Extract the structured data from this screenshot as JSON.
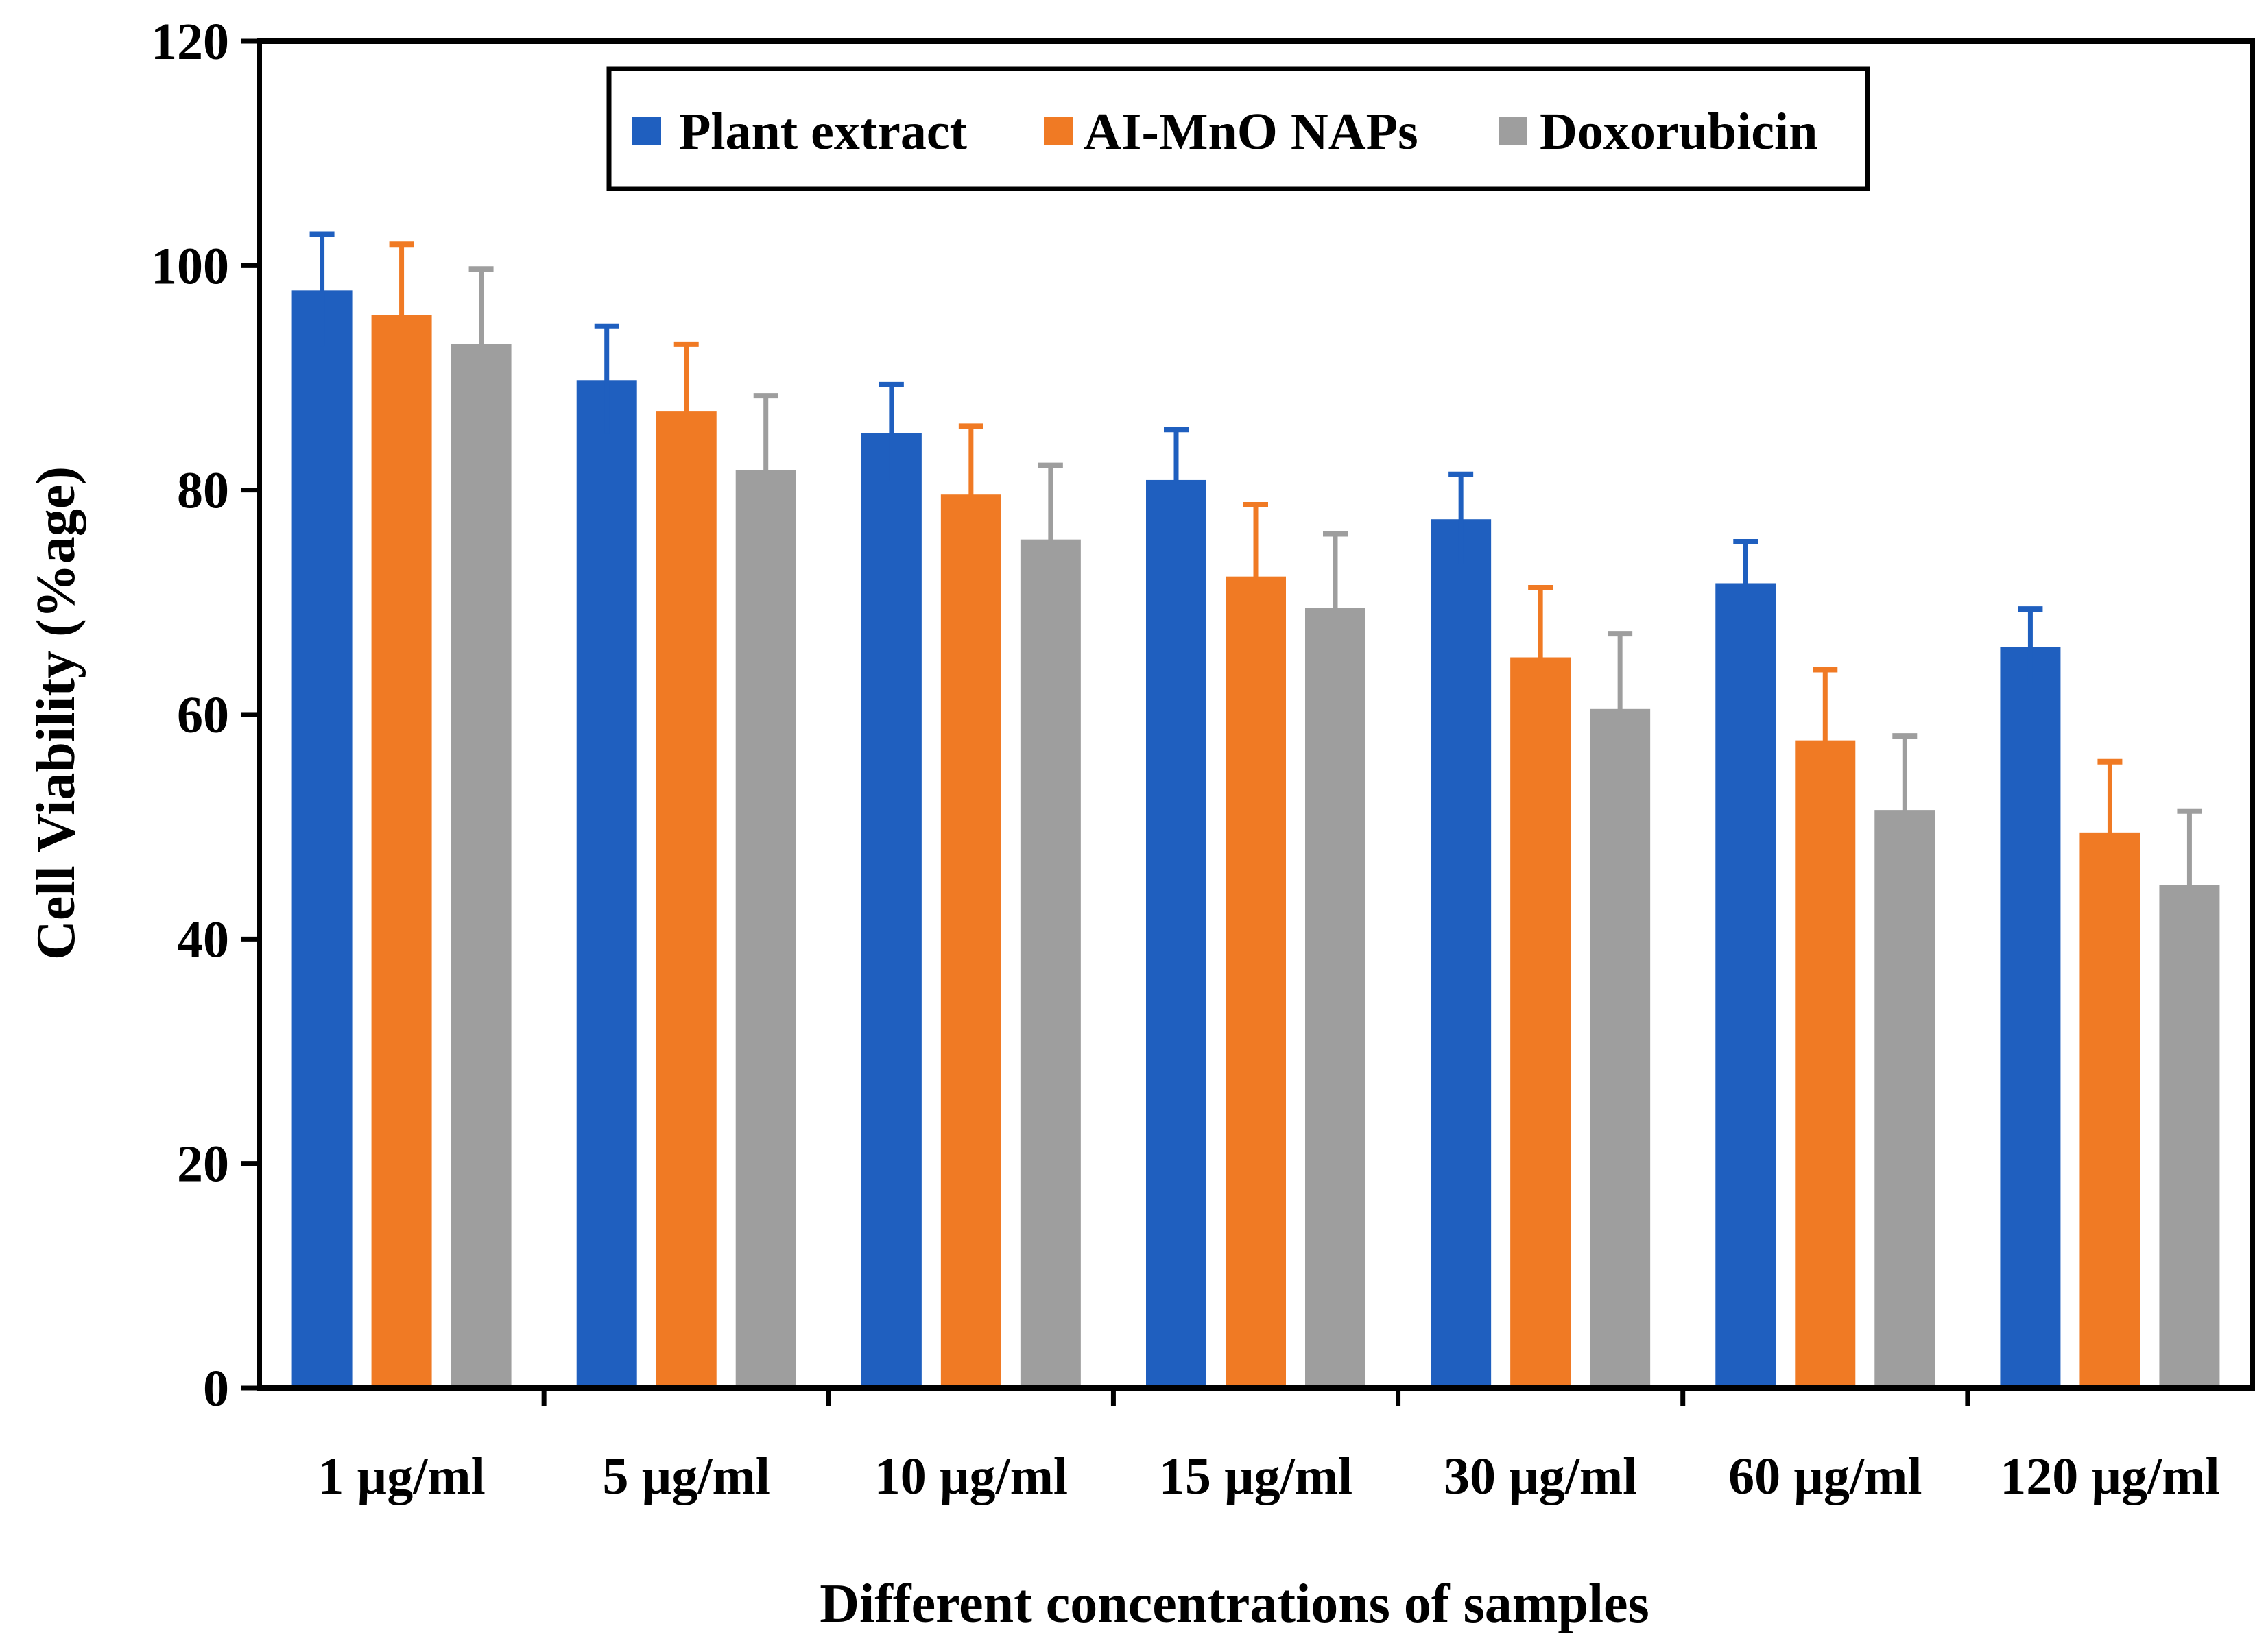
{
  "chart_data": {
    "type": "bar",
    "title": "",
    "xlabel": "Different concentrations of samples",
    "ylabel": "Cell Viability (%age)",
    "ylim": [
      0,
      120
    ],
    "yticks": [
      0,
      20,
      40,
      60,
      80,
      100,
      120
    ],
    "categories": [
      "1 µg/ml",
      "5 µg/ml",
      "10 µg/ml",
      "15 µg/ml",
      "30 µg/ml",
      "60 µg/ml",
      "120 µg/ml"
    ],
    "series": [
      {
        "name": "Plant extract",
        "color": "#1f5fbf",
        "errColor": "#1f5fbf",
        "values": [
          97.8,
          89.8,
          85.1,
          80.9,
          77.4,
          71.7,
          66.0
        ],
        "errors": [
          5.0,
          4.8,
          4.3,
          4.5,
          4.0,
          3.7,
          3.4
        ]
      },
      {
        "name": "AI-MnO NAPs",
        "color": "#f07a24",
        "errColor": "#f07a24",
        "values": [
          95.6,
          87.0,
          79.6,
          72.3,
          65.1,
          57.7,
          49.5
        ],
        "errors": [
          6.3,
          6.0,
          6.1,
          6.4,
          6.2,
          6.3,
          6.3
        ]
      },
      {
        "name": "Doxorubicin",
        "color": "#9e9e9e",
        "errColor": "#9e9e9e",
        "values": [
          93.0,
          81.8,
          75.6,
          69.5,
          60.5,
          51.5,
          44.8
        ],
        "errors": [
          6.7,
          6.6,
          6.6,
          6.6,
          6.7,
          6.6,
          6.6
        ]
      }
    ],
    "legend_position": "top-center"
  }
}
